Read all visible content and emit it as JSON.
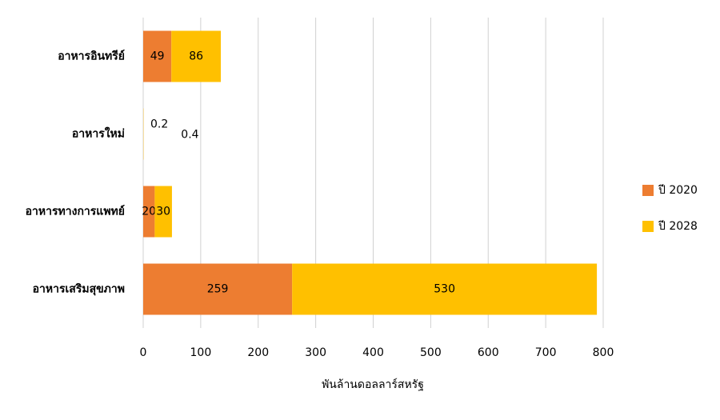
{
  "chart_data": {
    "type": "stacked-barh",
    "xlabel": "พันล้านดอลลาร์สหรัฐ",
    "categories": [
      "อาหารอินทรีย์",
      "อาหารใหม่",
      "อาหารทางการแพทย์",
      "อาหารเสริมสุขภาพ"
    ],
    "series": [
      {
        "name": "ปี 2020",
        "color": "#ED7D31",
        "values": [
          49,
          0.2,
          20,
          259
        ]
      },
      {
        "name": "ปี 2028",
        "color": "#FFC000",
        "values": [
          86,
          0.4,
          30,
          530
        ]
      }
    ],
    "xlim": [
      0,
      800
    ],
    "xticks": [
      0,
      100,
      200,
      300,
      400,
      500,
      600,
      700,
      800
    ],
    "grid": true,
    "legend": "right"
  }
}
